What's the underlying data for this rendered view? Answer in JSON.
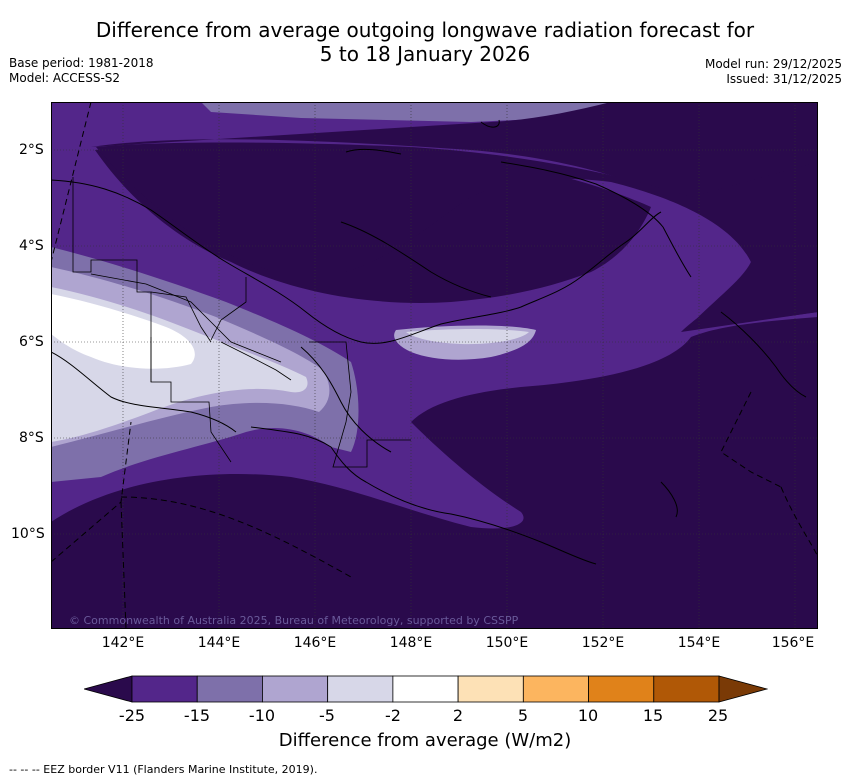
{
  "title_line1": "Difference from average outgoing longwave radiation forecast for",
  "title_line2": "5 to 18 January 2026",
  "base_period": "Base period: 1981-2018",
  "model": "Model: ACCESS-S2",
  "model_run": "Model run: 29/12/2025",
  "issued": "Issued: 31/12/2025",
  "latitude_labels": [
    "2°S",
    "4°S",
    "6°S",
    "8°S",
    "10°S"
  ],
  "longitude_labels": [
    "142°E",
    "144°E",
    "146°E",
    "148°E",
    "150°E",
    "152°E",
    "154°E",
    "156°E"
  ],
  "copyright": "© Commonwealth of Australia 2025, Bureau of Meteorology, supported by CSSPP",
  "colorbar": {
    "ticks": [
      "-25",
      "-15",
      "-10",
      "-5",
      "-2",
      "2",
      "5",
      "10",
      "15",
      "25"
    ],
    "colors": [
      "#2a0a4c",
      "#53268a",
      "#7e70aa",
      "#afa5d0",
      "#d7d7e8",
      "#ffffff",
      "#fde1b6",
      "#fcb55f",
      "#e0821a",
      "#b05806",
      "#7a3a06"
    ],
    "title": "Difference from average (W/m2)"
  },
  "footnote": "--  --  -- EEZ border V11 (Flanders Marine Institute, 2019)."
}
